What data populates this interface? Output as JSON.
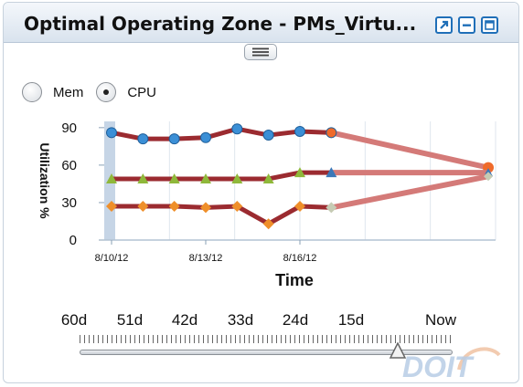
{
  "widget": {
    "title": "Optimal Operating Zone - PMs_Virtu...",
    "controls": [
      "popout-icon",
      "minimize-icon",
      "maximize-icon"
    ]
  },
  "metric_selector": {
    "options": [
      {
        "label": "Mem",
        "selected": false
      },
      {
        "label": "CPU",
        "selected": true
      }
    ]
  },
  "chart_data": {
    "type": "line",
    "ylabel": "Utilization %",
    "xlabel": "Time",
    "yticks": [
      "90",
      "60",
      "30",
      "0"
    ],
    "ylim": [
      0,
      95
    ],
    "xticks": [
      "8/10/12",
      "8/13/12",
      "8/16/12"
    ],
    "x_range": [
      "8/10/12",
      "8/22/12"
    ],
    "grid": "vertical",
    "series": [
      {
        "values": [
          {
            "x": "8/10/12",
            "y": 86
          },
          {
            "x": "8/11/12",
            "y": 81
          },
          {
            "x": "8/12/12",
            "y": 81
          },
          {
            "x": "8/13/12",
            "y": 82
          },
          {
            "x": "8/14/12",
            "y": 89
          },
          {
            "x": "8/15/12",
            "y": 84
          },
          {
            "x": "8/16/12",
            "y": 87
          },
          {
            "x": "8/17/12",
            "y": 86
          }
        ],
        "marker": "circle",
        "color": "#9b2b30",
        "marker_color": "#3b8fd6",
        "last_marker_color": "#ef6a2a",
        "forecast": {
          "x": "8/22/12",
          "y": 58,
          "color": "#d47a78"
        }
      },
      {
        "values": [
          {
            "x": "8/10/12",
            "y": 49
          },
          {
            "x": "8/11/12",
            "y": 49
          },
          {
            "x": "8/12/12",
            "y": 49
          },
          {
            "x": "8/13/12",
            "y": 49
          },
          {
            "x": "8/14/12",
            "y": 49
          },
          {
            "x": "8/15/12",
            "y": 49
          },
          {
            "x": "8/16/12",
            "y": 54
          },
          {
            "x": "8/17/12",
            "y": 54
          }
        ],
        "marker": "triangle",
        "color": "#9b2b30",
        "marker_color": "#8fb83a",
        "last_marker_color": "#3b78b8",
        "forecast": {
          "x": "8/22/12",
          "y": 54,
          "color": "#d47a78"
        }
      },
      {
        "values": [
          {
            "x": "8/10/12",
            "y": 27
          },
          {
            "x": "8/11/12",
            "y": 27
          },
          {
            "x": "8/12/12",
            "y": 27
          },
          {
            "x": "8/13/12",
            "y": 26
          },
          {
            "x": "8/14/12",
            "y": 27
          },
          {
            "x": "8/15/12",
            "y": 13
          },
          {
            "x": "8/16/12",
            "y": 27
          },
          {
            "x": "8/17/12",
            "y": 26
          }
        ],
        "marker": "diamond",
        "color": "#9b2b30",
        "marker_color": "#ef8f2a",
        "last_marker_color": "#c6cbb4",
        "forecast": {
          "x": "8/22/12",
          "y": 51,
          "color": "#d47a78"
        }
      }
    ]
  },
  "time_slider": {
    "labels": [
      "60d",
      "51d",
      "42d",
      "33d",
      "24d",
      "15d",
      "Now"
    ],
    "label_offsets_days": [
      60,
      51,
      42,
      33,
      24,
      15,
      0
    ],
    "value_days_ago": 6
  },
  "watermark": {
    "text": "DOIT"
  }
}
